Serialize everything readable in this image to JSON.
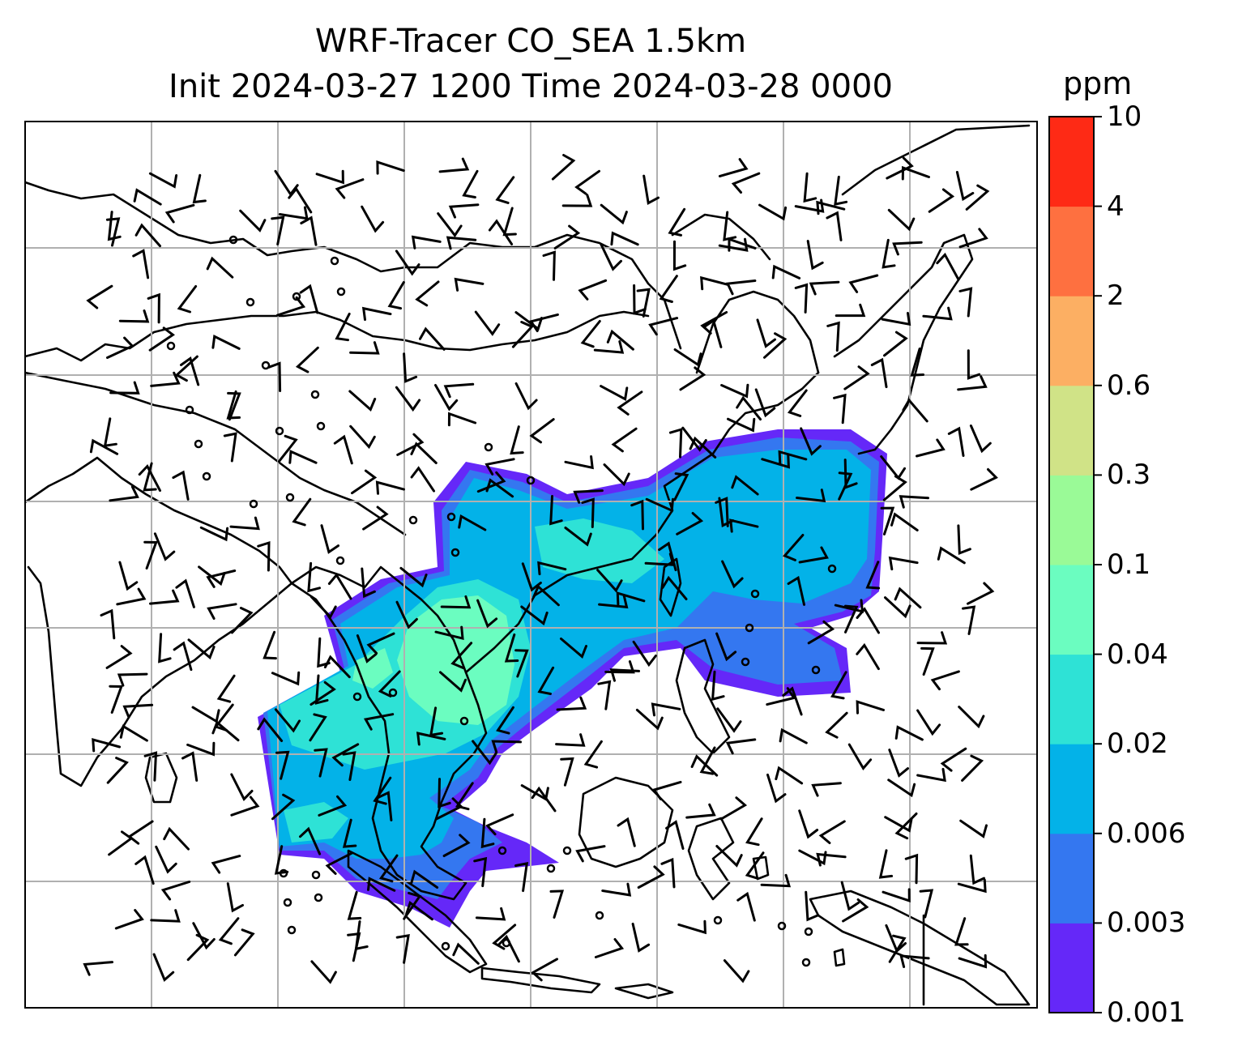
{
  "title": {
    "line1": "WRF-Tracer CO_SEA 1.5km",
    "line2": "Init 2024-03-27 1200 Time 2024-03-28 0000"
  },
  "colorbar": {
    "unit": "ppm",
    "levels": [
      "0.001",
      "0.003",
      "0.006",
      "0.02",
      "0.04",
      "0.1",
      "0.3",
      "0.6",
      "2",
      "4",
      "10"
    ],
    "colors": [
      "#6528f8",
      "#3477f0",
      "#03b2e8",
      "#2ee2d6",
      "#6bfdc0",
      "#9afa97",
      "#d0e387",
      "#fcaf63",
      "#fe7040",
      "#fe2a15"
    ]
  },
  "map": {
    "gridlines": true,
    "coastline_color": "#000000",
    "gridline_color": "#b0b0b0",
    "wind_barbs": true,
    "calm_circles": true
  }
}
